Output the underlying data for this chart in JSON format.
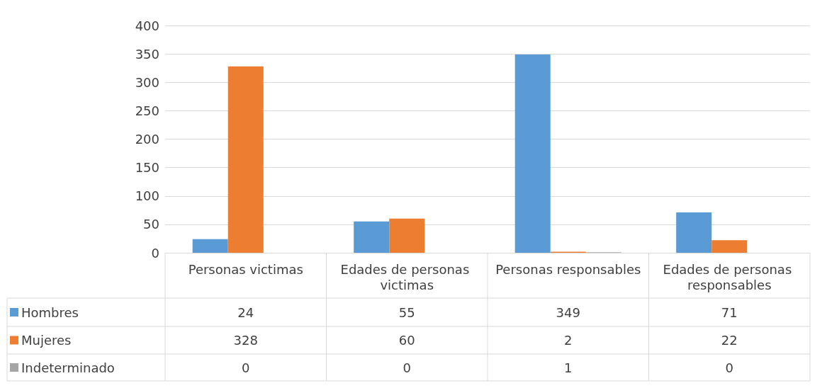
{
  "chart_data": {
    "type": "bar",
    "categories": [
      "Personas victimas",
      "Edades de personas victimas",
      "Personas responsables",
      "Edades de personas responsables"
    ],
    "series": [
      {
        "name": "Hombres",
        "color": "#5b9bd5",
        "values": [
          24,
          55,
          349,
          71
        ]
      },
      {
        "name": "Mujeres",
        "color": "#ed7d31",
        "values": [
          328,
          60,
          2,
          22
        ]
      },
      {
        "name": "Indeterminado",
        "color": "#a5a5a5",
        "values": [
          0,
          0,
          1,
          0
        ]
      }
    ],
    "ylim": [
      0,
      400
    ],
    "yticks": [
      0,
      50,
      100,
      150,
      200,
      250,
      300,
      350,
      400
    ],
    "grid": "y",
    "legend": "bottom",
    "data_labels": true
  }
}
